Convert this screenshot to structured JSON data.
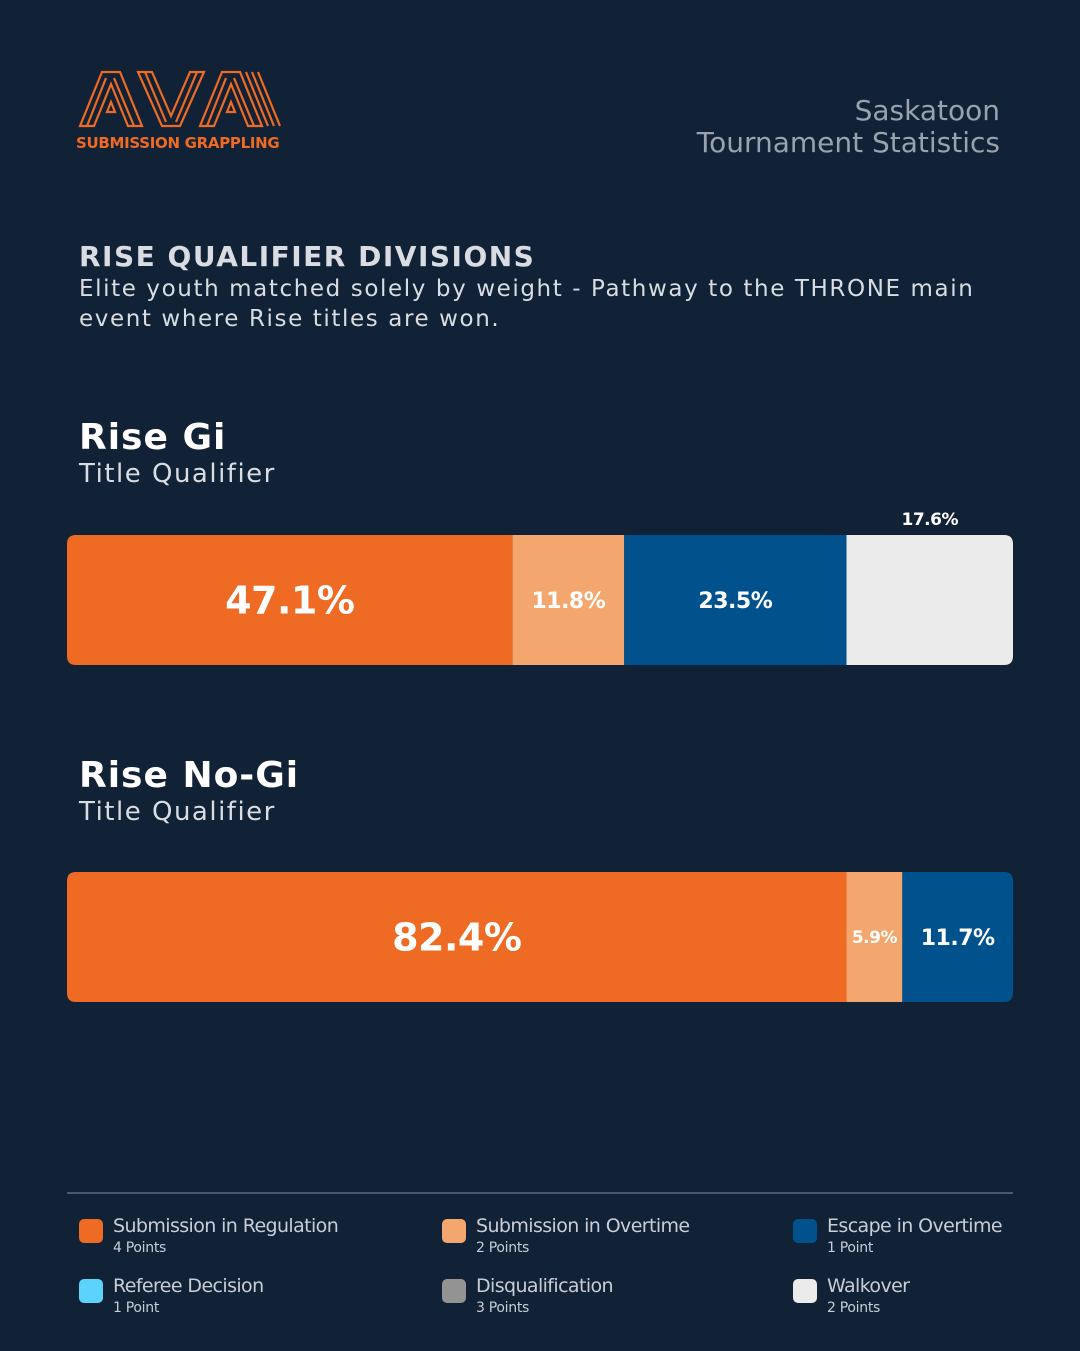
{
  "logo": {
    "text": "AVA",
    "subtitle": "SUBMISSION GRAPPLING",
    "color": "#ef6a22"
  },
  "header": {
    "line1": "Saskatoon",
    "line2": "Tournament Statistics"
  },
  "section": {
    "title": "RISE QUALIFIER DIVISIONS",
    "description": "Elite youth matched solely by weight - Pathway to the THRONE main event where Rise titles are won."
  },
  "chart_data": [
    {
      "type": "bar",
      "orientation": "horizontal-stacked-100",
      "title": "Rise Gi",
      "subtitle": "Title Qualifier",
      "segments": [
        {
          "category": "Submission in Regulation",
          "value": 47.1,
          "label": "47.1%"
        },
        {
          "category": "Submission in Overtime",
          "value": 11.8,
          "label": "11.8%"
        },
        {
          "category": "Escape in Overtime",
          "value": 23.5,
          "label": "23.5%"
        },
        {
          "category": "Walkover",
          "value": 17.6,
          "label": "17.6%"
        }
      ]
    },
    {
      "type": "bar",
      "orientation": "horizontal-stacked-100",
      "title": "Rise No-Gi",
      "subtitle": "Title Qualifier",
      "segments": [
        {
          "category": "Submission in Regulation",
          "value": 82.4,
          "label": "82.4%"
        },
        {
          "category": "Submission in Overtime",
          "value": 5.9,
          "label": "5.9%"
        },
        {
          "category": "Escape in Overtime",
          "value": 11.7,
          "label": "11.7%"
        }
      ]
    }
  ],
  "legend": [
    {
      "label": "Submission in Regulation",
      "points": "4 Points",
      "color": "#ef6a22"
    },
    {
      "label": "Submission in Overtime",
      "points": "2 Points",
      "color": "#f4a66f"
    },
    {
      "label": "Escape in Overtime",
      "points": "1 Point",
      "color": "#01528c"
    },
    {
      "label": "Referee Decision",
      "points": "1 Point",
      "color": "#5bd3fb"
    },
    {
      "label": "Disqualification",
      "points": "3 Points",
      "color": "#939393"
    },
    {
      "label": "Walkover",
      "points": "2 Points",
      "color": "#ebebeb"
    }
  ]
}
